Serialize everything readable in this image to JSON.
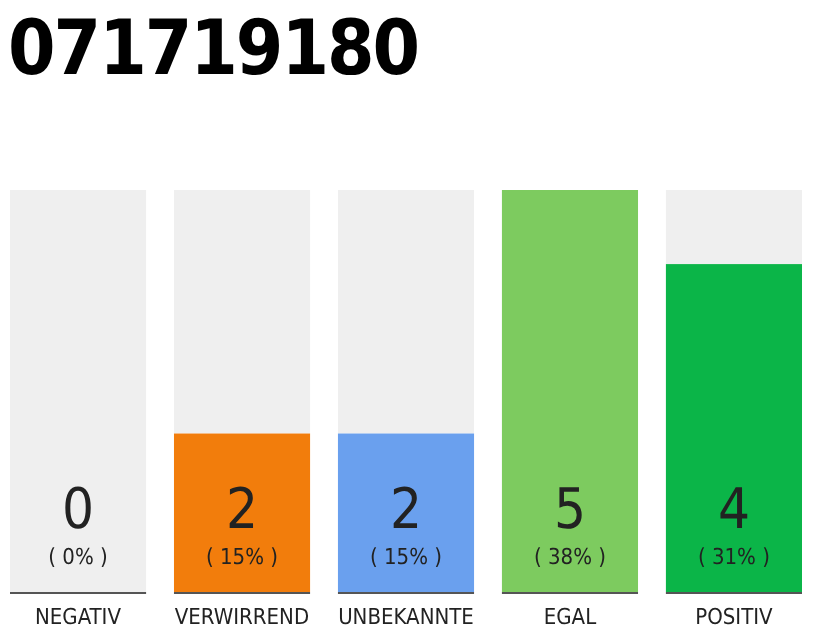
{
  "chart_data": {
    "type": "bar",
    "title": "071719180",
    "categories": [
      "NEGATIV",
      "VERWIRREND",
      "UNBEKANNTE",
      "EGAL",
      "POSITIV"
    ],
    "stacked": true,
    "series": [
      {
        "colors": [
          "#d9d9d9",
          "#f27d0c",
          "#6aa0ee",
          "#7dcb5f",
          "#0bb548"
        ],
        "values": [
          0,
          15,
          15,
          38,
          31
        ],
        "value_labels": [
          null,
          "( 15% )",
          "( 15% )",
          "( 38% )",
          "( 31% )"
        ]
      },
      {
        "color": "#efefef",
        "values": [
          38,
          23,
          23,
          0,
          7
        ]
      }
    ],
    "annotations": [
      "0",
      "2",
      "2",
      "5",
      "4",
      {
        "text": "( 0% )",
        "x": "NEGATIV",
        "y": 0
      }
    ],
    "tick_labels": "x"
  }
}
